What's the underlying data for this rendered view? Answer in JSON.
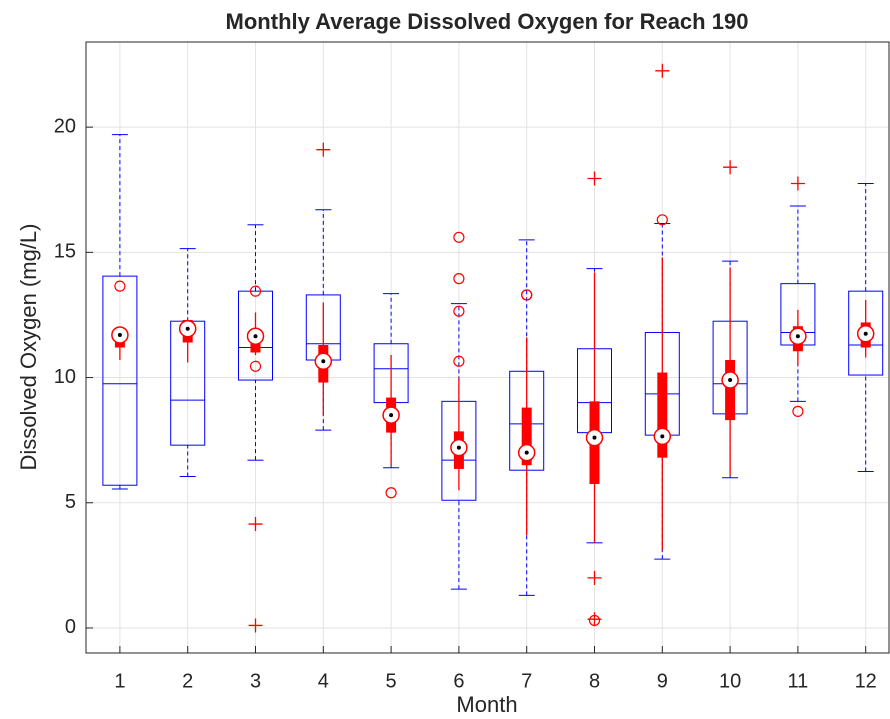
{
  "chart_data": {
    "type": "boxplot",
    "title": "Monthly Average Dissolved Oxygen for Reach 190",
    "x_label": "Month",
    "y_label": "Dissolved Oxygen (mg/L)",
    "categories": [
      "1",
      "2",
      "3",
      "4",
      "5",
      "6",
      "7",
      "8",
      "9",
      "10",
      "11",
      "12"
    ],
    "ylim": [
      -1,
      23.4
    ],
    "yticks": [
      0,
      5,
      10,
      15,
      20
    ],
    "grid": true,
    "series": [
      {
        "color": "#0000ff",
        "style": "traditional",
        "outlier_color": "#ff0000",
        "boxes": [
          {
            "whislo": 5.55,
            "q1": 5.7,
            "med": 9.75,
            "q3": 14.05,
            "whishi": 19.7,
            "fliers": []
          },
          {
            "whislo": 6.05,
            "q1": 7.3,
            "med": 9.1,
            "q3": 12.25,
            "whishi": 15.15,
            "fliers": []
          },
          {
            "whislo": 6.7,
            "q1": 9.9,
            "med": 11.2,
            "q3": 13.45,
            "whishi": 16.1,
            "fliers": [
              4.15,
              0.1
            ]
          },
          {
            "whislo": 7.9,
            "q1": 10.7,
            "med": 11.35,
            "q3": 13.3,
            "whishi": 16.7,
            "fliers": [
              19.1
            ]
          },
          {
            "whislo": 6.4,
            "q1": 9.0,
            "med": 10.35,
            "q3": 11.35,
            "whishi": 13.35,
            "fliers": []
          },
          {
            "whislo": 1.55,
            "q1": 5.1,
            "med": 6.7,
            "q3": 9.05,
            "whishi": 12.95,
            "fliers": []
          },
          {
            "whislo": 1.3,
            "q1": 6.3,
            "med": 8.15,
            "q3": 10.25,
            "whishi": 15.5,
            "fliers": []
          },
          {
            "whislo": 3.4,
            "q1": 7.8,
            "med": 9.0,
            "q3": 11.15,
            "whishi": 14.35,
            "fliers": [
              17.95,
              2.0,
              0.35
            ]
          },
          {
            "whislo": 2.75,
            "q1": 7.7,
            "med": 9.35,
            "q3": 11.8,
            "whishi": 16.15,
            "fliers": [
              22.25
            ]
          },
          {
            "whislo": 6.0,
            "q1": 8.55,
            "med": 9.75,
            "q3": 12.25,
            "whishi": 14.65,
            "fliers": [
              18.4
            ]
          },
          {
            "whislo": 9.05,
            "q1": 11.3,
            "med": 11.8,
            "q3": 13.75,
            "whishi": 16.85,
            "fliers": [
              17.75
            ]
          },
          {
            "whislo": 6.25,
            "q1": 10.1,
            "med": 11.3,
            "q3": 13.45,
            "whishi": 17.75,
            "fliers": []
          }
        ]
      },
      {
        "color": "#ff0000",
        "style": "compact",
        "outlier_color": "#ff0000",
        "boxes": [
          {
            "whislo": 10.7,
            "q1": 11.2,
            "med": 11.7,
            "q3": 11.7,
            "whishi": 12.0,
            "fliers": [
              13.65
            ]
          },
          {
            "whislo": 10.6,
            "q1": 11.4,
            "med": 11.95,
            "q3": 12.3,
            "whishi": 12.3,
            "fliers": []
          },
          {
            "whislo": 10.9,
            "q1": 11.0,
            "med": 11.65,
            "q3": 11.9,
            "whishi": 12.6,
            "fliers": [
              10.45,
              13.45
            ]
          },
          {
            "whislo": 8.5,
            "q1": 9.8,
            "med": 10.65,
            "q3": 11.3,
            "whishi": 13.0,
            "fliers": []
          },
          {
            "whislo": 6.5,
            "q1": 7.8,
            "med": 8.5,
            "q3": 9.2,
            "whishi": 10.9,
            "fliers": [
              5.4
            ]
          },
          {
            "whislo": 5.5,
            "q1": 6.35,
            "med": 7.2,
            "q3": 7.85,
            "whishi": 10.0,
            "fliers": [
              15.6,
              13.95,
              12.65,
              10.65
            ]
          },
          {
            "whislo": 3.7,
            "q1": 6.5,
            "med": 7.0,
            "q3": 8.8,
            "whishi": 11.6,
            "fliers": [
              13.3,
              13.3
            ]
          },
          {
            "whislo": 3.4,
            "q1": 5.75,
            "med": 7.6,
            "q3": 9.05,
            "whishi": 14.2,
            "fliers": [
              0.3
            ]
          },
          {
            "whislo": 3.1,
            "q1": 6.8,
            "med": 7.65,
            "q3": 10.2,
            "whishi": 14.8,
            "fliers": [
              16.3
            ]
          },
          {
            "whislo": 6.1,
            "q1": 8.3,
            "med": 9.9,
            "q3": 10.7,
            "whishi": 14.4,
            "fliers": []
          },
          {
            "whislo": 10.5,
            "q1": 11.05,
            "med": 11.65,
            "q3": 12.05,
            "whishi": 12.7,
            "fliers": [
              8.65
            ]
          },
          {
            "whislo": 10.8,
            "q1": 11.2,
            "med": 11.75,
            "q3": 12.2,
            "whishi": 13.1,
            "fliers": []
          }
        ]
      }
    ]
  }
}
